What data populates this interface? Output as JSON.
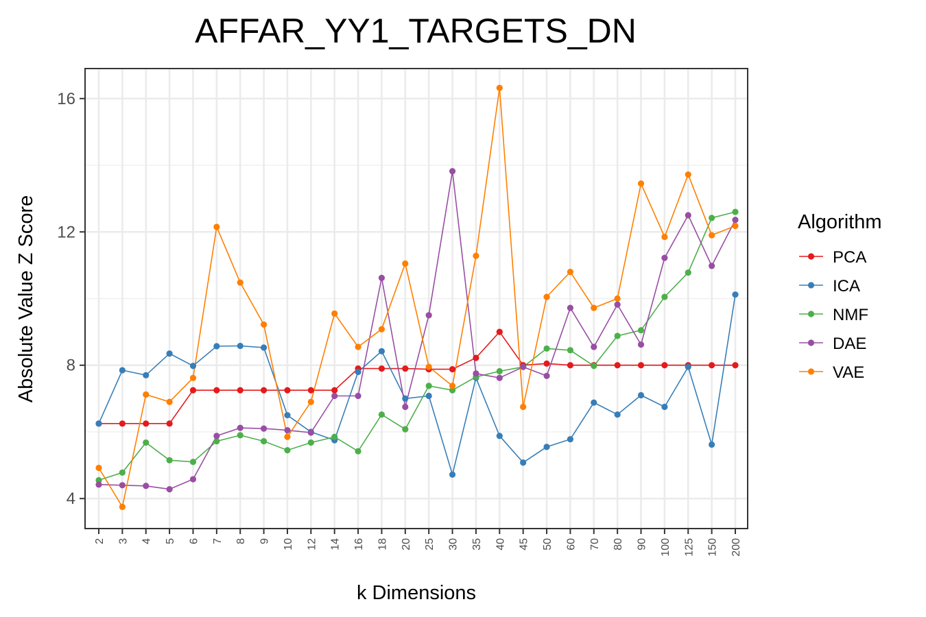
{
  "chart_data": {
    "type": "line",
    "title": "AFFAR_YY1_TARGETS_DN",
    "xlabel": "k Dimensions",
    "ylabel": "Absolute Value Z Score",
    "categories": [
      "2",
      "3",
      "4",
      "5",
      "6",
      "7",
      "8",
      "9",
      "10",
      "12",
      "14",
      "16",
      "18",
      "20",
      "25",
      "30",
      "35",
      "40",
      "45",
      "50",
      "60",
      "70",
      "80",
      "90",
      "100",
      "125",
      "150",
      "200"
    ],
    "ylim": [
      3.1,
      16.9
    ],
    "yticks": [
      4,
      8,
      12,
      16
    ],
    "grid": true,
    "legend_title": "Algorithm",
    "legend_position": "right",
    "series": [
      {
        "name": "PCA",
        "color": "#E41A1C",
        "values": [
          6.25,
          6.25,
          6.25,
          6.25,
          7.25,
          7.25,
          7.25,
          7.25,
          7.25,
          7.25,
          7.25,
          7.9,
          7.9,
          7.9,
          7.88,
          7.88,
          8.22,
          9.0,
          8.0,
          8.05,
          8.0,
          8.0,
          8.0,
          8.0,
          8.0,
          8.0,
          8.0,
          8.0
        ]
      },
      {
        "name": "ICA",
        "color": "#377EB8",
        "values": [
          6.25,
          7.85,
          7.7,
          8.35,
          7.98,
          8.57,
          8.58,
          8.53,
          6.5,
          6.0,
          5.75,
          7.8,
          8.42,
          7.0,
          7.08,
          4.72,
          7.62,
          5.88,
          5.08,
          5.55,
          5.78,
          6.88,
          6.52,
          7.1,
          6.75,
          7.95,
          5.62,
          10.12
        ]
      },
      {
        "name": "NMF",
        "color": "#4DAF4A",
        "values": [
          4.55,
          4.78,
          5.68,
          5.15,
          5.1,
          5.72,
          5.9,
          5.72,
          5.45,
          5.68,
          5.85,
          5.42,
          6.52,
          6.08,
          7.38,
          7.25,
          7.65,
          7.82,
          7.95,
          8.5,
          8.45,
          7.98,
          8.88,
          9.05,
          10.05,
          10.78,
          12.42,
          12.6
        ]
      },
      {
        "name": "DAE",
        "color": "#984EA3",
        "values": [
          4.42,
          4.4,
          4.38,
          4.28,
          4.58,
          5.88,
          6.12,
          6.1,
          6.05,
          5.98,
          7.08,
          7.08,
          10.62,
          6.75,
          9.5,
          13.82,
          7.75,
          7.62,
          7.95,
          7.68,
          9.72,
          8.55,
          9.82,
          8.62,
          11.22,
          12.5,
          10.98,
          12.36
        ]
      },
      {
        "name": "VAE",
        "color": "#FF7F00",
        "values": [
          4.92,
          3.75,
          7.12,
          6.9,
          7.62,
          12.15,
          10.48,
          9.22,
          5.85,
          6.9,
          9.55,
          8.55,
          9.08,
          11.05,
          7.95,
          7.38,
          11.28,
          16.32,
          6.75,
          10.05,
          10.8,
          9.72,
          10.0,
          13.45,
          11.85,
          13.72,
          11.9,
          12.18
        ]
      }
    ]
  }
}
